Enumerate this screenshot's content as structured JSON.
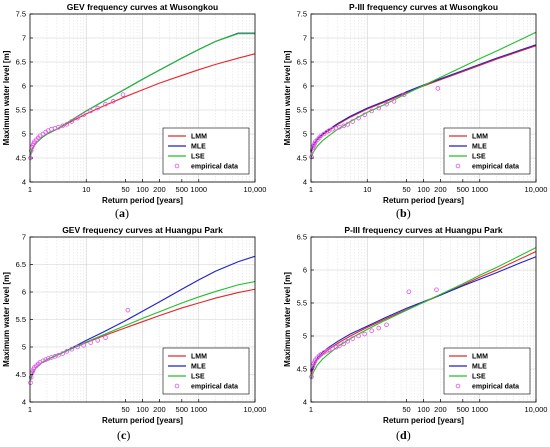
{
  "chart_data": [
    {
      "type": "line",
      "panel_label": "a",
      "title": "GEV frequency curves at Wusongkou",
      "xlabel": "Return period [years]",
      "ylabel": "Maximum water level [m]",
      "xscale": "log",
      "xlim": [
        1,
        10000
      ],
      "ylim": [
        4,
        7.5
      ],
      "x_tick_labels": [
        "1",
        "10",
        "50",
        "100",
        "200",
        "500",
        "1000",
        "10,000"
      ],
      "y_tick_labels": [
        "4",
        "4.5",
        "5",
        "5.5",
        "6",
        "6.5",
        "7",
        "7.5"
      ],
      "grid": true,
      "legend_position": "lower-right",
      "series": [
        {
          "name": "LMM",
          "color": "#e8262a",
          "x": [
            1.02,
            1.1,
            1.3,
            1.6,
            2,
            3,
            5,
            10,
            20,
            50,
            100,
            200,
            500,
            1000,
            2000,
            5000,
            10000
          ],
          "y": [
            4.55,
            4.7,
            4.82,
            4.92,
            5.0,
            5.1,
            5.24,
            5.42,
            5.58,
            5.78,
            5.92,
            6.06,
            6.22,
            6.34,
            6.45,
            6.58,
            6.67
          ]
        },
        {
          "name": "MLE",
          "color": "#1f1fd0",
          "x": [
            1.02,
            1.1,
            1.3,
            1.6,
            2,
            3,
            5,
            10,
            20,
            50,
            100,
            200,
            500,
            1000,
            2000,
            5000,
            10000
          ],
          "y": [
            4.55,
            4.7,
            4.82,
            4.92,
            5.0,
            5.1,
            5.26,
            5.48,
            5.68,
            5.94,
            6.14,
            6.33,
            6.58,
            6.76,
            6.93,
            7.1,
            7.1
          ]
        },
        {
          "name": "LSE",
          "color": "#22c02a",
          "x": [
            1.02,
            1.1,
            1.3,
            1.6,
            2,
            3,
            5,
            10,
            20,
            50,
            100,
            200,
            500,
            1000,
            2000,
            5000,
            10000
          ],
          "y": [
            4.55,
            4.7,
            4.82,
            4.92,
            5.0,
            5.1,
            5.26,
            5.48,
            5.68,
            5.94,
            6.14,
            6.33,
            6.58,
            6.76,
            6.93,
            7.09,
            7.09
          ]
        },
        {
          "name": "empirical data",
          "color": "#e455e8",
          "marker": "circle",
          "x": [
            1.02,
            1.05,
            1.08,
            1.12,
            1.16,
            1.2,
            1.3,
            1.4,
            1.5,
            1.7,
            1.9,
            2.1,
            2.4,
            2.8,
            3.2,
            3.8,
            4.5,
            5.5,
            7,
            9,
            12,
            16,
            22,
            30,
            45
          ],
          "y": [
            4.5,
            4.65,
            4.72,
            4.76,
            4.8,
            4.84,
            4.88,
            4.92,
            4.96,
            5.0,
            5.04,
            5.07,
            5.1,
            5.12,
            5.14,
            5.17,
            5.2,
            5.26,
            5.33,
            5.4,
            5.48,
            5.54,
            5.62,
            5.68,
            5.82
          ]
        }
      ]
    },
    {
      "type": "line",
      "panel_label": "b",
      "title": "P-III frequency curves at Wusongkou",
      "xlabel": "Return period [years]",
      "ylabel": "Maximum water level [m]",
      "xscale": "log",
      "xlim": [
        1,
        10000
      ],
      "ylim": [
        4,
        7.5
      ],
      "x_tick_labels": [
        "1",
        "10",
        "50",
        "100",
        "200",
        "500",
        "1000",
        "10,000"
      ],
      "y_tick_labels": [
        "4",
        "4.5",
        "5",
        "5.5",
        "6",
        "6.5",
        "7",
        "7.5"
      ],
      "grid": true,
      "legend_position": "lower-right",
      "series": [
        {
          "name": "LMM",
          "color": "#e8262a",
          "x": [
            1.02,
            1.1,
            1.3,
            1.6,
            2,
            3,
            5,
            10,
            20,
            50,
            100,
            200,
            500,
            1000,
            2000,
            5000,
            10000
          ],
          "y": [
            4.62,
            4.75,
            4.88,
            4.98,
            5.06,
            5.2,
            5.35,
            5.52,
            5.66,
            5.86,
            6.0,
            6.13,
            6.3,
            6.43,
            6.56,
            6.72,
            6.84
          ]
        },
        {
          "name": "MLE",
          "color": "#1f1fd0",
          "x": [
            1.02,
            1.1,
            1.3,
            1.6,
            2,
            3,
            5,
            10,
            20,
            50,
            100,
            200,
            500,
            1000,
            2000,
            5000,
            10000
          ],
          "y": [
            4.65,
            4.78,
            4.9,
            5.0,
            5.08,
            5.22,
            5.37,
            5.54,
            5.68,
            5.88,
            6.02,
            6.15,
            6.32,
            6.45,
            6.58,
            6.74,
            6.86
          ]
        },
        {
          "name": "LSE",
          "color": "#22c02a",
          "x": [
            1.02,
            1.1,
            1.3,
            1.6,
            2,
            3,
            5,
            10,
            20,
            50,
            100,
            200,
            500,
            1000,
            2000,
            5000,
            10000
          ],
          "y": [
            4.52,
            4.62,
            4.75,
            4.86,
            4.95,
            5.1,
            5.26,
            5.45,
            5.61,
            5.84,
            6.01,
            6.18,
            6.4,
            6.57,
            6.73,
            6.95,
            7.12
          ]
        },
        {
          "name": "empirical data",
          "color": "#e455e8",
          "marker": "circle",
          "x": [
            1.02,
            1.05,
            1.08,
            1.12,
            1.16,
            1.2,
            1.3,
            1.4,
            1.5,
            1.7,
            1.9,
            2.1,
            2.4,
            2.8,
            3.2,
            3.8,
            4.5,
            5.5,
            7,
            9,
            12,
            16,
            22,
            30,
            45,
            180
          ],
          "y": [
            4.52,
            4.65,
            4.72,
            4.76,
            4.8,
            4.84,
            4.88,
            4.92,
            4.96,
            5.0,
            5.04,
            5.07,
            5.1,
            5.12,
            5.14,
            5.17,
            5.2,
            5.26,
            5.33,
            5.4,
            5.48,
            5.54,
            5.62,
            5.68,
            5.82,
            5.95
          ]
        }
      ]
    },
    {
      "type": "line",
      "panel_label": "c",
      "title": "GEV frequency curves at Huangpu Park",
      "xlabel": "Return period [years]",
      "ylabel": "Maximum water level [m]",
      "xscale": "log",
      "xlim": [
        1,
        10000
      ],
      "ylim": [
        4,
        7
      ],
      "x_tick_labels": [
        "1",
        "50",
        "100",
        "200",
        "500",
        "1000",
        "10,000"
      ],
      "y_tick_labels": [
        "4",
        "4.5",
        "5",
        "5.5",
        "6",
        "6.5",
        "7"
      ],
      "grid": true,
      "legend_position": "lower-right",
      "series": [
        {
          "name": "LMM",
          "color": "#e8262a",
          "x": [
            1.02,
            1.1,
            1.3,
            1.6,
            2,
            3,
            5,
            10,
            20,
            50,
            100,
            200,
            500,
            1000,
            2000,
            5000,
            10000
          ],
          "y": [
            4.4,
            4.52,
            4.63,
            4.71,
            4.77,
            4.85,
            4.95,
            5.08,
            5.2,
            5.35,
            5.46,
            5.57,
            5.71,
            5.8,
            5.89,
            5.99,
            6.05
          ]
        },
        {
          "name": "MLE",
          "color": "#1f1fd0",
          "x": [
            1.02,
            1.1,
            1.3,
            1.6,
            2,
            3,
            5,
            10,
            20,
            50,
            100,
            200,
            500,
            1000,
            2000,
            5000,
            10000
          ],
          "y": [
            4.4,
            4.52,
            4.63,
            4.71,
            4.77,
            4.85,
            4.96,
            5.12,
            5.27,
            5.48,
            5.65,
            5.82,
            6.05,
            6.22,
            6.38,
            6.55,
            6.65
          ]
        },
        {
          "name": "LSE",
          "color": "#22c02a",
          "x": [
            1.02,
            1.1,
            1.3,
            1.6,
            2,
            3,
            5,
            10,
            20,
            50,
            100,
            200,
            500,
            1000,
            2000,
            5000,
            10000
          ],
          "y": [
            4.4,
            4.52,
            4.63,
            4.71,
            4.77,
            4.85,
            4.95,
            5.09,
            5.22,
            5.39,
            5.52,
            5.64,
            5.8,
            5.91,
            6.01,
            6.13,
            6.19
          ]
        },
        {
          "name": "empirical data",
          "color": "#e455e8",
          "marker": "circle",
          "x": [
            1.02,
            1.05,
            1.08,
            1.12,
            1.16,
            1.2,
            1.3,
            1.4,
            1.5,
            1.7,
            1.9,
            2.1,
            2.4,
            2.8,
            3.2,
            3.8,
            4.5,
            5.5,
            7,
            9,
            12,
            16,
            22,
            55
          ],
          "y": [
            4.35,
            4.45,
            4.52,
            4.56,
            4.6,
            4.63,
            4.66,
            4.69,
            4.72,
            4.75,
            4.77,
            4.79,
            4.81,
            4.83,
            4.85,
            4.88,
            4.92,
            4.96,
            5.0,
            5.03,
            5.08,
            5.12,
            5.17,
            5.67
          ]
        }
      ]
    },
    {
      "type": "line",
      "panel_label": "d",
      "title": "P-III frequency curves at Huangpu Park",
      "xlabel": "Return period [years]",
      "ylabel": "Maximum water level [m]",
      "xscale": "log",
      "xlim": [
        1,
        10000
      ],
      "ylim": [
        4,
        6.5
      ],
      "x_tick_labels": [
        "1",
        "50",
        "100",
        "200",
        "500",
        "1000",
        "10,000"
      ],
      "y_tick_labels": [
        "4",
        "4.5",
        "5",
        "5.5",
        "6",
        "6.5"
      ],
      "grid": true,
      "legend_position": "lower-right",
      "series": [
        {
          "name": "LMM",
          "color": "#e8262a",
          "x": [
            1.02,
            1.1,
            1.3,
            1.6,
            2,
            3,
            5,
            10,
            20,
            50,
            100,
            200,
            500,
            1000,
            2000,
            5000,
            10000
          ],
          "y": [
            4.42,
            4.53,
            4.64,
            4.72,
            4.79,
            4.89,
            5.0,
            5.13,
            5.25,
            5.4,
            5.51,
            5.62,
            5.77,
            5.89,
            6.0,
            6.16,
            6.28
          ]
        },
        {
          "name": "MLE",
          "color": "#1f1fd0",
          "x": [
            1.02,
            1.1,
            1.3,
            1.6,
            2,
            3,
            5,
            10,
            20,
            50,
            100,
            200,
            500,
            1000,
            2000,
            5000,
            10000
          ],
          "y": [
            4.46,
            4.56,
            4.67,
            4.75,
            4.82,
            4.92,
            5.03,
            5.15,
            5.27,
            5.42,
            5.52,
            5.62,
            5.76,
            5.86,
            5.96,
            6.1,
            6.2
          ]
        },
        {
          "name": "LSE",
          "color": "#22c02a",
          "x": [
            1.02,
            1.1,
            1.3,
            1.6,
            2,
            3,
            5,
            10,
            20,
            50,
            100,
            200,
            500,
            1000,
            2000,
            5000,
            10000
          ],
          "y": [
            4.35,
            4.45,
            4.56,
            4.65,
            4.72,
            4.84,
            4.96,
            5.1,
            5.23,
            5.39,
            5.51,
            5.63,
            5.79,
            5.92,
            6.04,
            6.21,
            6.34
          ]
        },
        {
          "name": "empirical data",
          "color": "#e455e8",
          "marker": "circle",
          "x": [
            1.02,
            1.05,
            1.08,
            1.12,
            1.16,
            1.2,
            1.3,
            1.4,
            1.5,
            1.7,
            1.9,
            2.1,
            2.4,
            2.8,
            3.2,
            3.8,
            4.5,
            5.5,
            7,
            9,
            12,
            16,
            22,
            55,
            170
          ],
          "y": [
            4.38,
            4.48,
            4.54,
            4.58,
            4.61,
            4.64,
            4.67,
            4.7,
            4.72,
            4.75,
            4.77,
            4.79,
            4.81,
            4.83,
            4.85,
            4.88,
            4.92,
            4.96,
            5.0,
            5.03,
            5.08,
            5.12,
            5.17,
            5.67,
            5.7
          ]
        }
      ]
    }
  ]
}
